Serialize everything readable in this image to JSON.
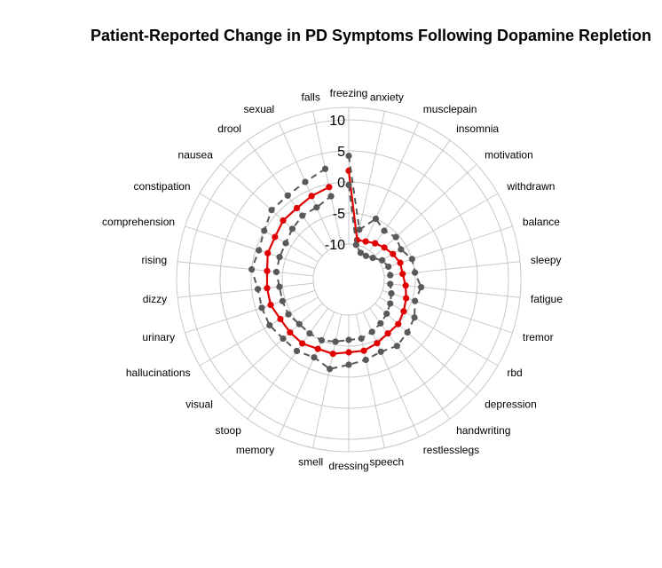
{
  "chart_data": {
    "type": "radar",
    "title": "Patient-Reported Change in PD Symptoms Following Dopamine Repletion",
    "rlim": [
      -10,
      10
    ],
    "ticks": [
      10,
      5,
      0,
      -5,
      -10
    ],
    "tick_labels": [
      "10",
      "5",
      "0",
      "-5",
      "-10"
    ],
    "grid": true,
    "categories": [
      "freezing",
      "anxiety",
      "musclepain",
      "insomnia",
      "motivation",
      "withdrawn",
      "balance",
      "sleepy",
      "fatigue",
      "tremor",
      "rbd",
      "depression",
      "handwriting",
      "restlesslegs",
      "speech",
      "dressing",
      "smell",
      "memory",
      "stoop",
      "visual",
      "hallucinations",
      "urinary",
      "dizzy",
      "rising",
      "comprehension",
      "constipation",
      "nausea",
      "drool",
      "sexual",
      "falls"
    ],
    "series": [
      {
        "values": [
          1.8,
          -9.2,
          -9,
          -8.5,
          -8,
          -7.5,
          -7,
          -7,
          -6.5,
          -6,
          -5.5,
          -5,
          -5,
          -4.5,
          -4,
          -4,
          -3.5,
          -3.5,
          -3,
          -3,
          -3,
          -2.5,
          -2.5,
          -2.5,
          -2,
          -2,
          -1.5,
          -1.5,
          -1,
          -0.5
        ],
        "color": "#e00000",
        "style": "solid"
      },
      {
        "values": [
          4.2,
          -7.5,
          -5,
          -6,
          -5.5,
          -6,
          -5,
          -5,
          -4,
          -4.5,
          -3.5,
          -3,
          -2.5,
          -3,
          -2.5,
          -2,
          -1,
          -2,
          -1.5,
          -1.5,
          -1,
          -1,
          -1,
          0,
          -0.5,
          0,
          1,
          1,
          1.5,
          2.5
        ],
        "color": "#595959",
        "style": "dashed"
      },
      {
        "values": [
          -0.5,
          -10,
          -11,
          -11,
          -10.5,
          -9.5,
          -9,
          -9,
          -9,
          -8.5,
          -8,
          -7.5,
          -7,
          -6.5,
          -6,
          -6,
          -5.5,
          -5,
          -5,
          -5,
          -4.5,
          -4.5,
          -4.5,
          -4,
          -4,
          -4,
          -3.5,
          -3,
          -3,
          -2
        ],
        "color": "#595959",
        "style": "dashed"
      }
    ]
  }
}
